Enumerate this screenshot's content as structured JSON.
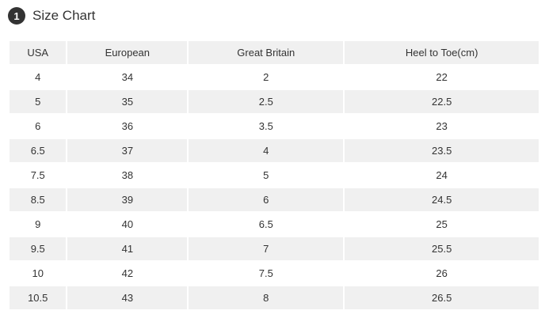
{
  "header": {
    "badge": "1",
    "title": "Size Chart"
  },
  "table": {
    "columns": [
      "USA",
      "European",
      "Great Britain",
      "Heel to Toe(cm)"
    ],
    "rows": [
      [
        "4",
        "34",
        "2",
        "22"
      ],
      [
        "5",
        "35",
        "2.5",
        "22.5"
      ],
      [
        "6",
        "36",
        "3.5",
        "23"
      ],
      [
        "6.5",
        "37",
        "4",
        "23.5"
      ],
      [
        "7.5",
        "38",
        "5",
        "24"
      ],
      [
        "8.5",
        "39",
        "6",
        "24.5"
      ],
      [
        "9",
        "40",
        "6.5",
        "25"
      ],
      [
        "9.5",
        "41",
        "7",
        "25.5"
      ],
      [
        "10",
        "42",
        "7.5",
        "26"
      ],
      [
        "10.5",
        "43",
        "8",
        "26.5"
      ]
    ]
  }
}
